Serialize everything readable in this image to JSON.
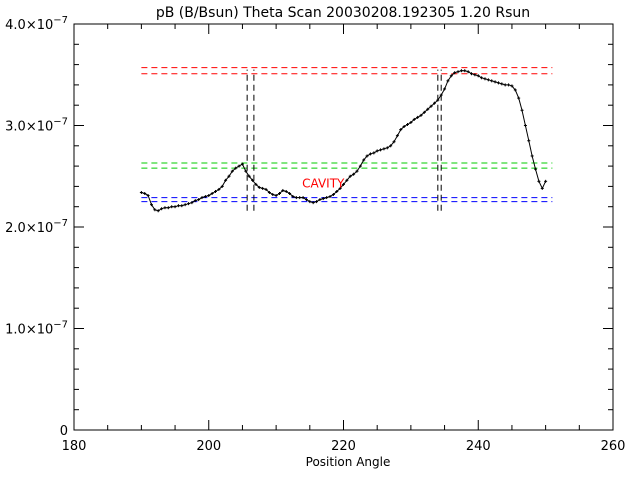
{
  "chart_data": {
    "type": "line",
    "title": "pB (B/Bsun) Theta Scan 20030208.192305 1.20 Rsun",
    "xlabel": "Position Angle",
    "ylabel": "",
    "xlim": [
      180,
      260
    ],
    "ylim": [
      0,
      4e-07
    ],
    "x_ticks": [
      {
        "value": 180,
        "label": "180"
      },
      {
        "value": 200,
        "label": "200"
      },
      {
        "value": 220,
        "label": "220"
      },
      {
        "value": 240,
        "label": "240"
      },
      {
        "value": 260,
        "label": "260"
      }
    ],
    "y_ticks": [
      {
        "value": 0,
        "mantissa": "0",
        "exp": ""
      },
      {
        "value": 1e-07,
        "mantissa": "1.0×10",
        "exp": "−7"
      },
      {
        "value": 2e-07,
        "mantissa": "2.0×10",
        "exp": "−7"
      },
      {
        "value": 3e-07,
        "mantissa": "3.0×10",
        "exp": "−7"
      },
      {
        "value": 4e-07,
        "mantissa": "4.0×10",
        "exp": "−7"
      }
    ],
    "x_minor_step": 5,
    "y_minor_step": 2e-08,
    "series": [
      {
        "color": "#000000",
        "x": [
          190.0,
          190.5,
          191.0,
          191.5,
          192.0,
          192.5,
          193.0,
          193.5,
          194.0,
          194.5,
          195.0,
          195.5,
          196.0,
          196.5,
          197.0,
          197.5,
          198.0,
          198.5,
          199.0,
          199.5,
          200.0,
          200.5,
          201.0,
          201.5,
          202.0,
          202.5,
          203.0,
          203.5,
          204.0,
          204.5,
          205.0,
          205.5,
          206.0,
          206.5,
          207.0,
          207.5,
          208.0,
          208.5,
          209.0,
          209.5,
          210.0,
          210.5,
          211.0,
          211.5,
          212.0,
          212.5,
          213.0,
          213.5,
          214.0,
          214.5,
          215.0,
          215.5,
          216.0,
          216.5,
          217.0,
          217.5,
          218.0,
          218.5,
          219.0,
          219.5,
          220.0,
          220.5,
          221.0,
          221.5,
          222.0,
          222.5,
          223.0,
          223.5,
          224.0,
          224.5,
          225.0,
          225.5,
          226.0,
          226.5,
          227.0,
          227.5,
          228.0,
          228.5,
          229.0,
          229.5,
          230.0,
          230.5,
          231.0,
          231.5,
          232.0,
          232.5,
          233.0,
          233.5,
          234.0,
          234.5,
          235.0,
          235.5,
          236.0,
          236.5,
          237.0,
          237.5,
          238.0,
          238.5,
          239.0,
          239.5,
          240.0,
          240.5,
          241.0,
          241.5,
          242.0,
          242.5,
          243.0,
          243.5,
          244.0,
          244.5,
          245.0,
          245.5,
          246.0,
          246.5,
          247.0,
          247.5,
          248.0,
          248.5,
          249.0,
          249.5,
          250.0
        ],
        "y": [
          2.34e-07,
          2.33e-07,
          2.31e-07,
          2.22e-07,
          2.17e-07,
          2.16e-07,
          2.18e-07,
          2.19e-07,
          2.19e-07,
          2.2e-07,
          2.2e-07,
          2.21e-07,
          2.21e-07,
          2.22e-07,
          2.23e-07,
          2.24e-07,
          2.26e-07,
          2.27e-07,
          2.29e-07,
          2.3e-07,
          2.31e-07,
          2.33e-07,
          2.35e-07,
          2.37e-07,
          2.4e-07,
          2.46e-07,
          2.5e-07,
          2.55e-07,
          2.58e-07,
          2.6e-07,
          2.62e-07,
          2.55e-07,
          2.5e-07,
          2.46e-07,
          2.42e-07,
          2.39e-07,
          2.38e-07,
          2.37e-07,
          2.34e-07,
          2.32e-07,
          2.31e-07,
          2.33e-07,
          2.36e-07,
          2.35e-07,
          2.33e-07,
          2.3e-07,
          2.29e-07,
          2.29e-07,
          2.29e-07,
          2.27e-07,
          2.25e-07,
          2.24e-07,
          2.25e-07,
          2.27e-07,
          2.28e-07,
          2.29e-07,
          2.3e-07,
          2.32e-07,
          2.35e-07,
          2.38e-07,
          2.42e-07,
          2.46e-07,
          2.5e-07,
          2.52e-07,
          2.55e-07,
          2.6e-07,
          2.66e-07,
          2.7e-07,
          2.72e-07,
          2.73e-07,
          2.75e-07,
          2.76e-07,
          2.77e-07,
          2.78e-07,
          2.8e-07,
          2.84e-07,
          2.9e-07,
          2.96e-07,
          2.99e-07,
          3.01e-07,
          3.03e-07,
          3.06e-07,
          3.08e-07,
          3.1e-07,
          3.13e-07,
          3.16e-07,
          3.19e-07,
          3.22e-07,
          3.25e-07,
          3.3e-07,
          3.36e-07,
          3.44e-07,
          3.49e-07,
          3.52e-07,
          3.53e-07,
          3.54e-07,
          3.54e-07,
          3.53e-07,
          3.51e-07,
          3.5e-07,
          3.49e-07,
          3.47e-07,
          3.46e-07,
          3.45e-07,
          3.44e-07,
          3.43e-07,
          3.42e-07,
          3.41e-07,
          3.4e-07,
          3.4e-07,
          3.39e-07,
          3.35e-07,
          3.27e-07,
          3.15e-07,
          3e-07,
          2.85e-07,
          2.7e-07,
          2.57e-07,
          2.45e-07,
          2.38e-07,
          2.45e-07
        ]
      }
    ],
    "hlines": [
      {
        "y": 3.57e-07,
        "x": [
          190,
          251
        ],
        "color": "#ff0000",
        "dash": true
      },
      {
        "y": 3.51e-07,
        "x": [
          190,
          251
        ],
        "color": "#ff0000",
        "dash": true
      },
      {
        "y": 2.63e-07,
        "x": [
          190,
          251
        ],
        "color": "#00cc00",
        "dash": true
      },
      {
        "y": 2.58e-07,
        "x": [
          190,
          251
        ],
        "color": "#00cc00",
        "dash": true
      },
      {
        "y": 2.29e-07,
        "x": [
          190,
          251
        ],
        "color": "#0000ff",
        "dash": true
      },
      {
        "y": 2.25e-07,
        "x": [
          190,
          251
        ],
        "color": "#0000ff",
        "dash": true
      }
    ],
    "vlines": [
      {
        "x": 205.7,
        "y": [
          2.16e-07,
          3.55e-07
        ],
        "color": "#000000",
        "dash": true
      },
      {
        "x": 206.7,
        "y": [
          2.16e-07,
          3.55e-07
        ],
        "color": "#000000",
        "dash": true
      },
      {
        "x": 234.0,
        "y": [
          2.16e-07,
          3.55e-07
        ],
        "color": "#000000",
        "dash": true
      },
      {
        "x": 234.5,
        "y": [
          2.16e-07,
          3.55e-07
        ],
        "color": "#000000",
        "dash": true
      }
    ],
    "annotations": [
      {
        "text": "CAVITY",
        "x": 217,
        "y": 2.39e-07,
        "color": "#ff0000"
      }
    ],
    "grid": false
  }
}
